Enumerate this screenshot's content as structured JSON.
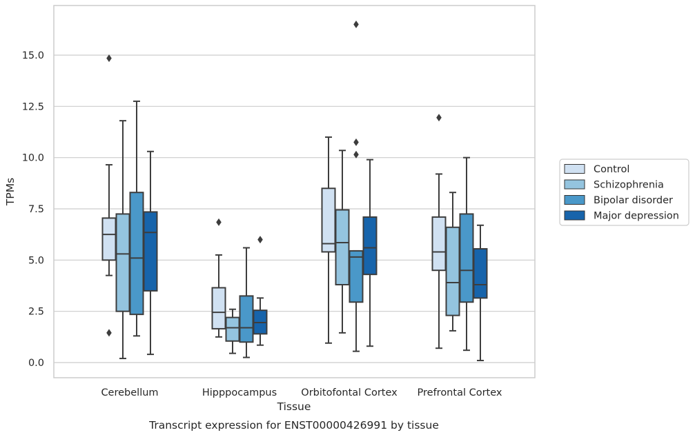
{
  "chart_data": {
    "type": "boxplot",
    "title": "",
    "caption": "Transcript expression for ENST00000426991 by tissue",
    "xlabel": "Tissue",
    "ylabel": "TPMs",
    "categories": [
      "Cerebellum",
      "Hipppocampus",
      "Orbitofontal Cortex",
      "Prefrontal Cortex"
    ],
    "ylim": [
      -0.7,
      17.7
    ],
    "yticks": [
      0.0,
      2.5,
      5.0,
      7.5,
      10.0,
      12.5,
      15.0
    ],
    "ytick_labels": [
      "0.0",
      "2.5",
      "5.0",
      "7.5",
      "10.0",
      "12.5",
      "15.0"
    ],
    "grid": true,
    "legend_position": "right",
    "series": [
      {
        "name": "Control",
        "color": "#d0e1f2",
        "boxes": [
          {
            "whisker_low": 4.25,
            "q1": 5.0,
            "median": 6.25,
            "q3": 7.05,
            "whisker_high": 9.65,
            "outliers": [
              14.85,
              1.45
            ]
          },
          {
            "whisker_low": 1.25,
            "q1": 1.65,
            "median": 2.45,
            "q3": 3.65,
            "whisker_high": 5.25,
            "outliers": [
              6.85
            ]
          },
          {
            "whisker_low": 0.95,
            "q1": 5.4,
            "median": 5.8,
            "q3": 8.5,
            "whisker_high": 11.0,
            "outliers": []
          },
          {
            "whisker_low": 0.7,
            "q1": 4.5,
            "median": 5.4,
            "q3": 7.1,
            "whisker_high": 9.2,
            "outliers": [
              11.95
            ]
          }
        ]
      },
      {
        "name": "Schizophrenia",
        "color": "#94c4df",
        "boxes": [
          {
            "whisker_low": 0.2,
            "q1": 2.5,
            "median": 5.3,
            "q3": 7.25,
            "whisker_high": 11.8,
            "outliers": []
          },
          {
            "whisker_low": 0.45,
            "q1": 1.05,
            "median": 1.7,
            "q3": 2.2,
            "whisker_high": 2.6,
            "outliers": []
          },
          {
            "whisker_low": 1.45,
            "q1": 3.8,
            "median": 5.85,
            "q3": 7.45,
            "whisker_high": 10.35,
            "outliers": []
          },
          {
            "whisker_low": 1.55,
            "q1": 2.3,
            "median": 3.9,
            "q3": 6.6,
            "whisker_high": 8.3,
            "outliers": []
          }
        ]
      },
      {
        "name": "Bipolar disorder",
        "color": "#4a98c9",
        "boxes": [
          {
            "whisker_low": 1.3,
            "q1": 2.35,
            "median": 5.1,
            "q3": 8.3,
            "whisker_high": 12.75,
            "outliers": []
          },
          {
            "whisker_low": 0.25,
            "q1": 1.0,
            "median": 1.7,
            "q3": 3.25,
            "whisker_high": 5.6,
            "outliers": []
          },
          {
            "whisker_low": 0.55,
            "q1": 2.95,
            "median": 5.15,
            "q3": 5.45,
            "whisker_high": 5.45,
            "outliers": [
              16.5,
              10.75,
              10.15
            ]
          },
          {
            "whisker_low": 0.6,
            "q1": 2.95,
            "median": 4.5,
            "q3": 7.25,
            "whisker_high": 10.0,
            "outliers": []
          }
        ]
      },
      {
        "name": "Major depression",
        "color": "#1764ab",
        "boxes": [
          {
            "whisker_low": 0.4,
            "q1": 3.5,
            "median": 6.35,
            "q3": 7.35,
            "whisker_high": 10.3,
            "outliers": []
          },
          {
            "whisker_low": 0.85,
            "q1": 1.4,
            "median": 1.95,
            "q3": 2.55,
            "whisker_high": 3.15,
            "outliers": [
              6.0
            ]
          },
          {
            "whisker_low": 0.8,
            "q1": 4.3,
            "median": 5.6,
            "q3": 7.1,
            "whisker_high": 9.9,
            "outliers": []
          },
          {
            "whisker_low": 0.1,
            "q1": 3.15,
            "median": 3.8,
            "q3": 5.55,
            "whisker_high": 6.7,
            "outliers": []
          }
        ]
      }
    ]
  },
  "colors": {
    "grid": "#cccccc",
    "box_edge": "#3d3d3d",
    "frame": "#cccccc"
  }
}
